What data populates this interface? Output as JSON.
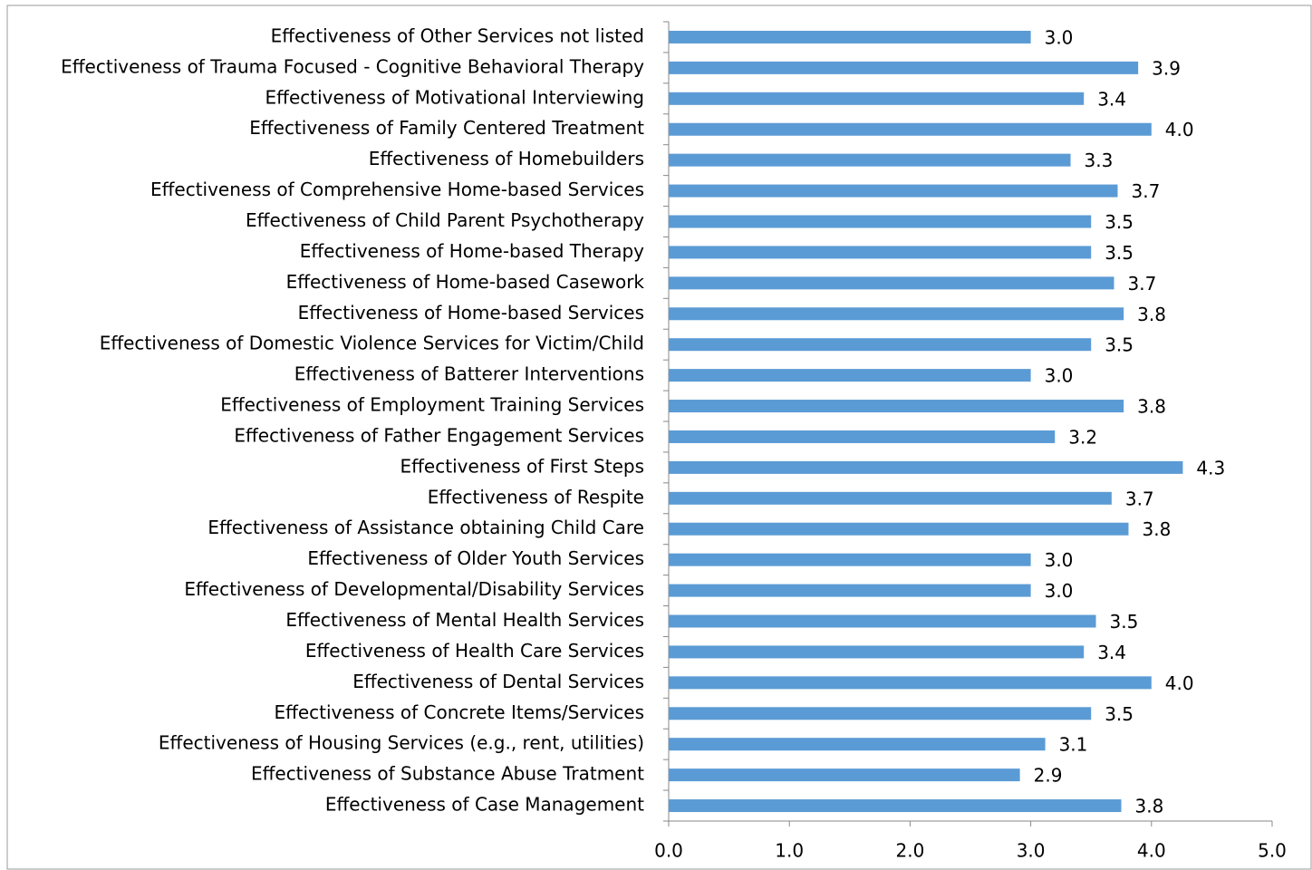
{
  "chart_data": {
    "type": "bar",
    "orientation": "horizontal",
    "categories": [
      "Effectiveness of Other Services not listed",
      "Effectiveness of Trauma Focused - Cognitive Behavioral Therapy",
      "Effectiveness of Motivational Interviewing",
      "Effectiveness of Family Centered Treatment",
      "Effectiveness of Homebuilders",
      "Effectiveness of Comprehensive Home-based Services",
      "Effectiveness of Child Parent Psychotherapy",
      "Effectiveness of Home-based Therapy",
      "Effectiveness of Home-based Casework",
      "Effectiveness of Home-based Services",
      "Effectiveness of Domestic Violence Services for Victim/Child",
      "Effectiveness of Batterer Interventions",
      "Effectiveness of Employment Training Services",
      "Effectiveness of Father Engagement Services",
      "Effectiveness of First Steps",
      "Effectiveness of Respite",
      "Effectiveness of Assistance obtaining Child Care",
      "Effectiveness of Older Youth Services",
      "Effectiveness of Developmental/Disability Services",
      "Effectiveness of Mental Health Services",
      "Effectiveness of Health Care Services",
      "Effectiveness of Dental Services",
      "Effectiveness of Concrete Items/Services",
      "Effectiveness of Housing Services (e.g., rent, utilities)",
      "Effectiveness of Substance Abuse Tratment",
      "Effectiveness of Case Management"
    ],
    "values": [
      3.0,
      3.89,
      3.44,
      4.0,
      3.33,
      3.72,
      3.5,
      3.5,
      3.69,
      3.77,
      3.5,
      3.0,
      3.77,
      3.2,
      4.26,
      3.67,
      3.81,
      3.0,
      3.0,
      3.54,
      3.44,
      4.0,
      3.5,
      3.12,
      2.91,
      3.75
    ],
    "value_labels": [
      "3.0",
      "3.9",
      "3.4",
      "4.0",
      "3.3",
      "3.7",
      "3.5",
      "3.5",
      "3.7",
      "3.8",
      "3.5",
      "3.0",
      "3.8",
      "3.2",
      "4.3",
      "3.7",
      "3.8",
      "3.0",
      "3.0",
      "3.5",
      "3.4",
      "4.0",
      "3.5",
      "3.1",
      "2.9",
      "3.8"
    ],
    "color": "#5b9bd5",
    "xlim": [
      0,
      5
    ],
    "xticks": [
      {
        "value": 0,
        "label": "0.0"
      },
      {
        "value": 1,
        "label": "1.0"
      },
      {
        "value": 2,
        "label": "2.0"
      },
      {
        "value": 3,
        "label": "3.0"
      },
      {
        "value": 4,
        "label": "4.0"
      },
      {
        "value": 5,
        "label": "5.0"
      }
    ]
  }
}
